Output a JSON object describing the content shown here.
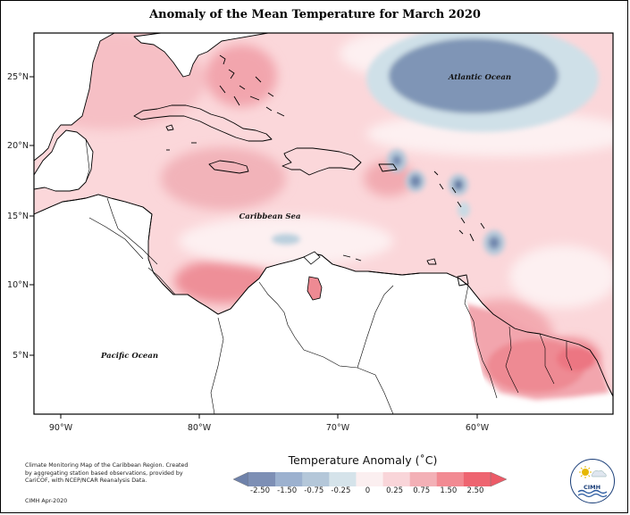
{
  "title": "Anomaly of the Mean Temperature for March 2020",
  "map": {
    "lat_ticks": [
      "25°N",
      "20°N",
      "15°N",
      "10°N",
      "5°N"
    ],
    "lon_ticks": [
      "90°W",
      "80°W",
      "70°W",
      "60°W"
    ],
    "labels": {
      "atlantic": "Atlantic Ocean",
      "caribbean": "Caribbean Sea",
      "pacific": "Pacific Ocean"
    },
    "colors": {
      "land": "#ffffff",
      "coast": "#000000",
      "base_anomaly": "#fbd7da"
    }
  },
  "colorbar": {
    "title": "Temperature Anomaly (˚C)",
    "labels": [
      "-2.50",
      "-1.50",
      "-0.75",
      "-0.25",
      "0",
      "0.25",
      "0.75",
      "1.50",
      "2.50"
    ],
    "colors": [
      "#7d8fb5",
      "#9cb1cf",
      "#b4c7d9",
      "#d5e3ea",
      "#fbeff0",
      "#f9d5d9",
      "#f3b0b6",
      "#f28a92",
      "#ee6470"
    ]
  },
  "info_text": "Climate Monitoring Map of the Caribbean Region. Created by aggregating station based observations, provided by CariCOF, with NCEP/NCAR Reanalysis Data.",
  "credit": "CIMH Apr-2020",
  "logo_text": "CIMH"
}
